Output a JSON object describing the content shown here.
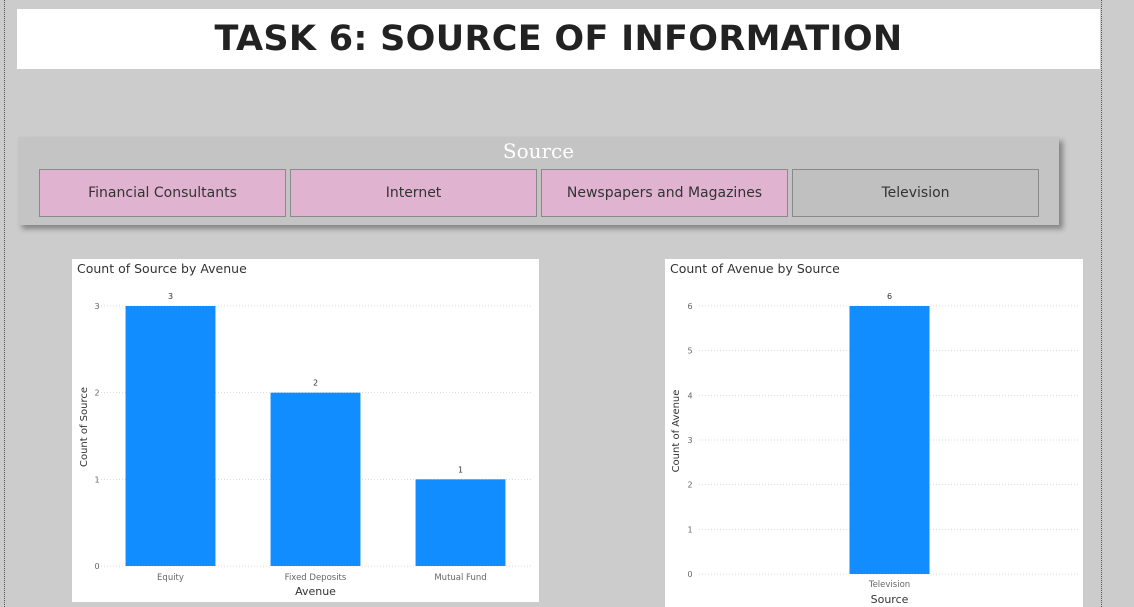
{
  "page": {
    "title": "TASK 6: SOURCE OF INFORMATION"
  },
  "slicer": {
    "title": "Source",
    "items": [
      {
        "label": "Financial Consultants",
        "selected": true
      },
      {
        "label": "Internet",
        "selected": true
      },
      {
        "label": "Newspapers and Magazines",
        "selected": true
      },
      {
        "label": "Television",
        "selected": false
      }
    ],
    "selected_color": "#e0b4d1",
    "unselected_color": "#c0c0c0"
  },
  "colors": {
    "bar": "#118dff",
    "grid": "#d9d9d9",
    "axis_text": "#666666",
    "label_text": "#333333"
  },
  "chart_data": [
    {
      "type": "bar",
      "title": "Count of Source by Avenue",
      "xlabel": "Avenue",
      "ylabel": "Count of Source",
      "categories": [
        "Equity",
        "Fixed Deposits",
        "Mutual Fund"
      ],
      "values": [
        3,
        2,
        1
      ],
      "ylim": [
        0,
        3
      ],
      "yticks": [
        0,
        1,
        2,
        3
      ],
      "data_labels": true,
      "grid": true
    },
    {
      "type": "bar",
      "title": "Count of Avenue by Source",
      "xlabel": "Source",
      "ylabel": "Count of Avenue",
      "categories": [
        "Television"
      ],
      "values": [
        6
      ],
      "ylim": [
        0,
        6
      ],
      "yticks": [
        0,
        1,
        2,
        3,
        4,
        5,
        6
      ],
      "data_labels": true,
      "grid": true
    }
  ]
}
